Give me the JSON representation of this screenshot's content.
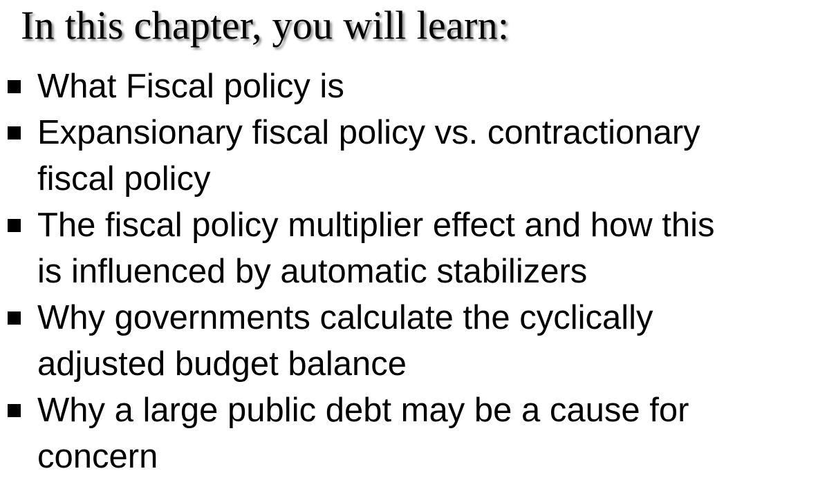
{
  "slide": {
    "title": "In this chapter, you will learn:",
    "bullets": [
      {
        "lines": [
          "What Fiscal policy is"
        ]
      },
      {
        "lines": [
          "Expansionary fiscal policy vs. contractionary",
          "fiscal policy"
        ]
      },
      {
        "lines": [
          "The fiscal policy multiplier effect and how this",
          "is influenced by automatic stabilizers"
        ]
      },
      {
        "lines": [
          "Why governments calculate the cyclically",
          "adjusted budget balance"
        ]
      },
      {
        "lines": [
          "Why a large public debt may be a cause for",
          "concern"
        ]
      }
    ]
  },
  "colors": {
    "background": "#ffffff",
    "text": "#000000"
  },
  "icons": {
    "bullet": "square-bullet-icon"
  }
}
